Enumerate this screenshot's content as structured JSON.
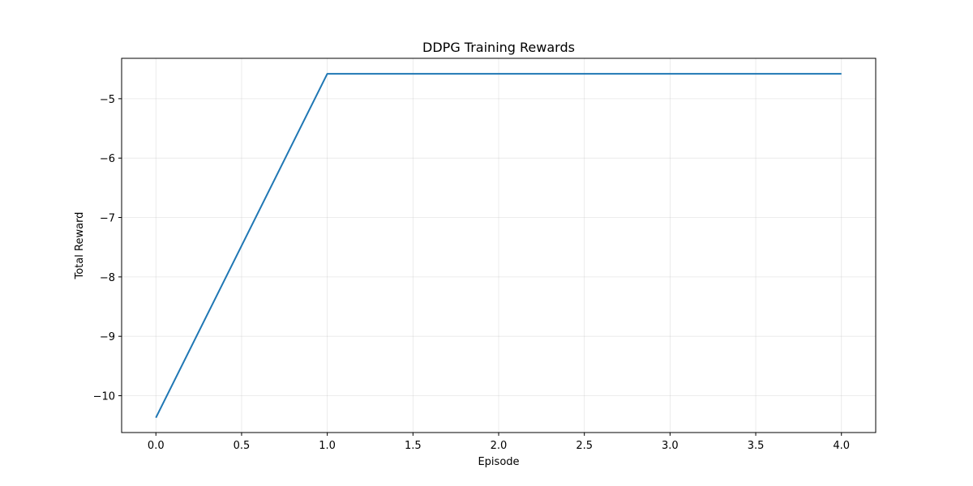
{
  "chart_data": {
    "type": "line",
    "title": "DDPG Training Rewards",
    "xlabel": "Episode",
    "ylabel": "Total Reward",
    "xlim": [
      -0.2,
      4.2
    ],
    "ylim": [
      -10.62,
      -4.32
    ],
    "xticks": [
      0.0,
      0.5,
      1.0,
      1.5,
      2.0,
      2.5,
      3.0,
      3.5,
      4.0
    ],
    "xtick_labels": [
      "0.0",
      "0.5",
      "1.0",
      "1.5",
      "2.0",
      "2.5",
      "3.0",
      "3.5",
      "4.0"
    ],
    "yticks": [
      -10,
      -9,
      -8,
      -7,
      -6,
      -5
    ],
    "ytick_labels": [
      "−10",
      "−9",
      "−8",
      "−7",
      "−6",
      "−5"
    ],
    "grid": true,
    "series": [
      {
        "color": "#1f77b4",
        "x": [
          0,
          1,
          2,
          3,
          4
        ],
        "y": [
          -10.37,
          -4.58,
          -4.58,
          -4.58,
          -4.58
        ]
      }
    ]
  }
}
